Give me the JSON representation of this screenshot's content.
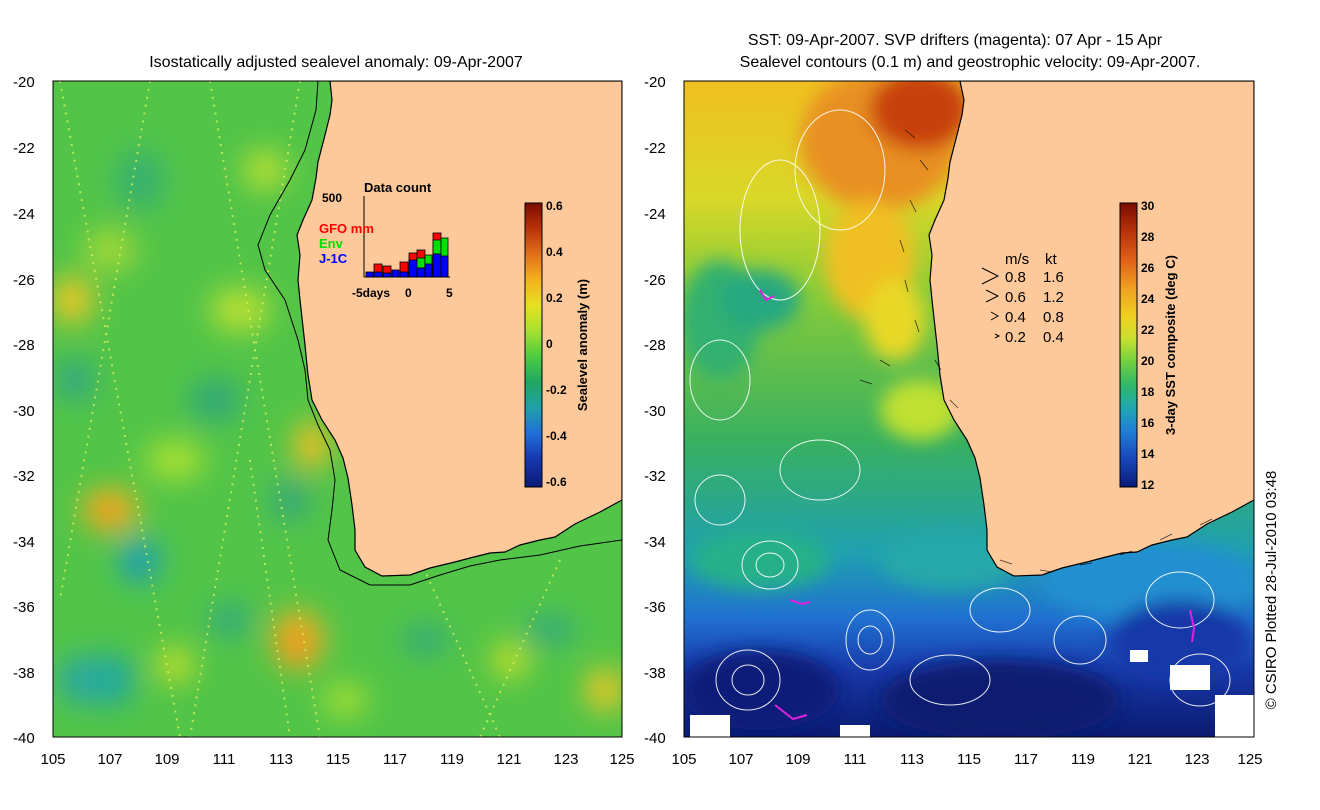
{
  "left_panel": {
    "title": "Isostatically adjusted sealevel anomaly: 09-Apr-2007",
    "x_ticks": [
      "105",
      "107",
      "109",
      "111",
      "113",
      "115",
      "117",
      "119",
      "121",
      "123",
      "125"
    ],
    "y_ticks": [
      "-20",
      "-22",
      "-24",
      "-26",
      "-28",
      "-30",
      "-32",
      "-34",
      "-36",
      "-38",
      "-40"
    ],
    "colorbar": {
      "label": "Sealevel anomaly (m)",
      "ticks": [
        "0.6",
        "0.4",
        "0.2",
        "0",
        "-0.2",
        "-0.4",
        "-0.6"
      ],
      "colors": [
        "#7a0c00",
        "#b8320a",
        "#e0701a",
        "#f5b020",
        "#e8e020",
        "#a8e030",
        "#4ccc40",
        "#20a860",
        "#20a0a8",
        "#2070d8",
        "#1838b0",
        "#0a1a78"
      ]
    },
    "histogram": {
      "title": "Data count",
      "y_max_label": "500",
      "x_labels": [
        "-5days",
        "0",
        "5"
      ],
      "series": [
        {
          "name": "GFO mm",
          "color": "#ff0000"
        },
        {
          "name": "Env",
          "color": "#00e000"
        },
        {
          "name": "J-1C",
          "color": "#0000ff"
        }
      ]
    }
  },
  "right_panel": {
    "title_line1": "SST: 09-Apr-2007. SVP drifters (magenta): 07 Apr - 15 Apr",
    "title_line2": "Sealevel contours (0.1 m) and geostrophic velocity: 09-Apr-2007.",
    "x_ticks": [
      "105",
      "107",
      "109",
      "111",
      "113",
      "115",
      "117",
      "119",
      "121",
      "123",
      "125"
    ],
    "y_ticks": [
      "-20",
      "-22",
      "-24",
      "-26",
      "-28",
      "-30",
      "-32",
      "-34",
      "-36",
      "-38",
      "-40"
    ],
    "colorbar": {
      "label": "3-day SST composite (deg C)",
      "ticks": [
        "30",
        "28",
        "26",
        "24",
        "22",
        "20",
        "18",
        "16",
        "14",
        "12"
      ],
      "colors": [
        "#7a0c00",
        "#b8320a",
        "#e06018",
        "#f0a020",
        "#f0d020",
        "#c8e030",
        "#70d040",
        "#30b868",
        "#20a8b0",
        "#2080d8",
        "#1848b8",
        "#0a1a78"
      ]
    },
    "velocity_legend": {
      "header_ms": "m/s",
      "header_kt": "kt",
      "rows": [
        {
          "ms": "0.8",
          "kt": "1.6"
        },
        {
          "ms": "0.6",
          "kt": "1.2"
        },
        {
          "ms": "0.4",
          "kt": "0.8"
        },
        {
          "ms": "0.2",
          "kt": "0.4"
        }
      ]
    }
  },
  "colors": {
    "land": "#fdc99a",
    "coast": "#000000"
  },
  "credit": "© CSIRO Plotted 28-Jul-2010 03:48"
}
